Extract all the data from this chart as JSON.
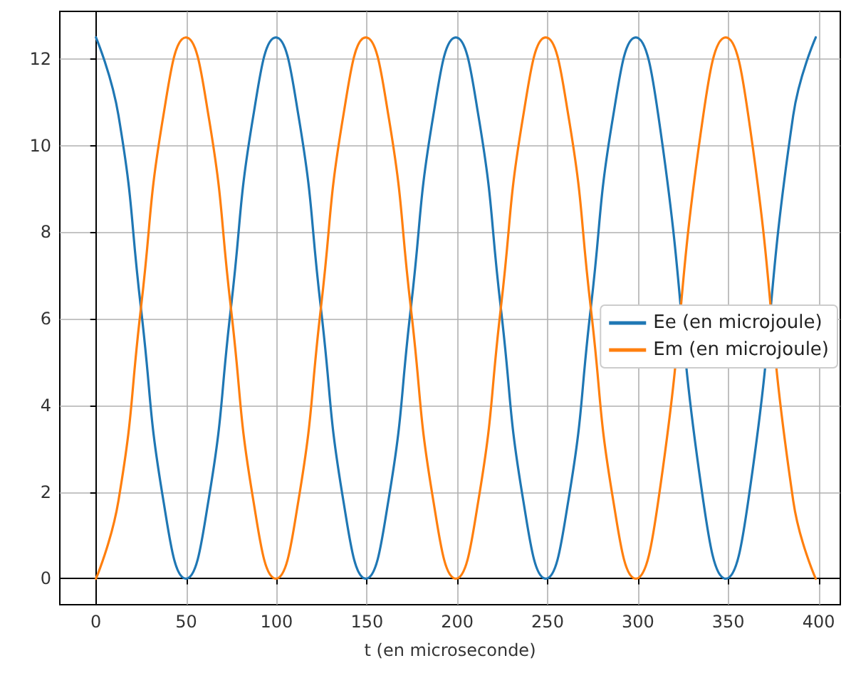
{
  "chart_data": {
    "type": "line",
    "xlabel": "t (en microseconde)",
    "x": [
      0,
      12.45,
      24.9,
      37.35,
      49.8,
      62.25,
      74.7,
      87.15,
      99.6,
      112.05,
      124.5,
      136.95,
      149.4,
      161.85,
      174.3,
      186.75,
      199.2,
      211.65,
      224.1,
      236.55,
      249,
      261.45,
      273.9,
      286.35,
      298.8,
      311.25,
      323.7,
      336.15,
      348.6,
      361.05,
      373.5,
      385.95,
      398.4
    ],
    "series": [
      {
        "name": "Ee (en microjoule)",
        "color": "#1f77b4",
        "values": [
          12.5,
          10.7,
          6.25,
          1.8,
          0,
          1.8,
          6.25,
          10.7,
          12.5,
          10.7,
          6.25,
          1.8,
          0,
          1.8,
          6.25,
          10.7,
          12.5,
          10.7,
          6.25,
          1.8,
          0,
          1.8,
          6.25,
          10.7,
          12.5,
          10.7,
          null,
          1.8,
          0,
          1.8,
          null,
          10.7,
          12.5
        ]
      },
      {
        "name": "Em (en microjoule)",
        "color": "#ff7f0e",
        "values": [
          0,
          1.8,
          6.25,
          10.7,
          12.5,
          10.7,
          6.25,
          1.8,
          0,
          1.8,
          6.25,
          10.7,
          12.5,
          10.7,
          6.25,
          1.8,
          0,
          1.8,
          6.25,
          10.7,
          12.5,
          10.7,
          6.25,
          1.8,
          0,
          1.8,
          null,
          10.7,
          12.5,
          10.7,
          null,
          1.8,
          0
        ]
      }
    ],
    "xlim": [
      -20,
      412
    ],
    "ylim": [
      -0.6,
      13.1
    ],
    "xticks": [
      0,
      50,
      100,
      150,
      200,
      250,
      300,
      350,
      400
    ],
    "yticks": [
      0,
      2,
      4,
      6,
      8,
      10,
      12
    ],
    "grid": true,
    "legend": "right",
    "marker": "none",
    "line_style": "solid"
  }
}
